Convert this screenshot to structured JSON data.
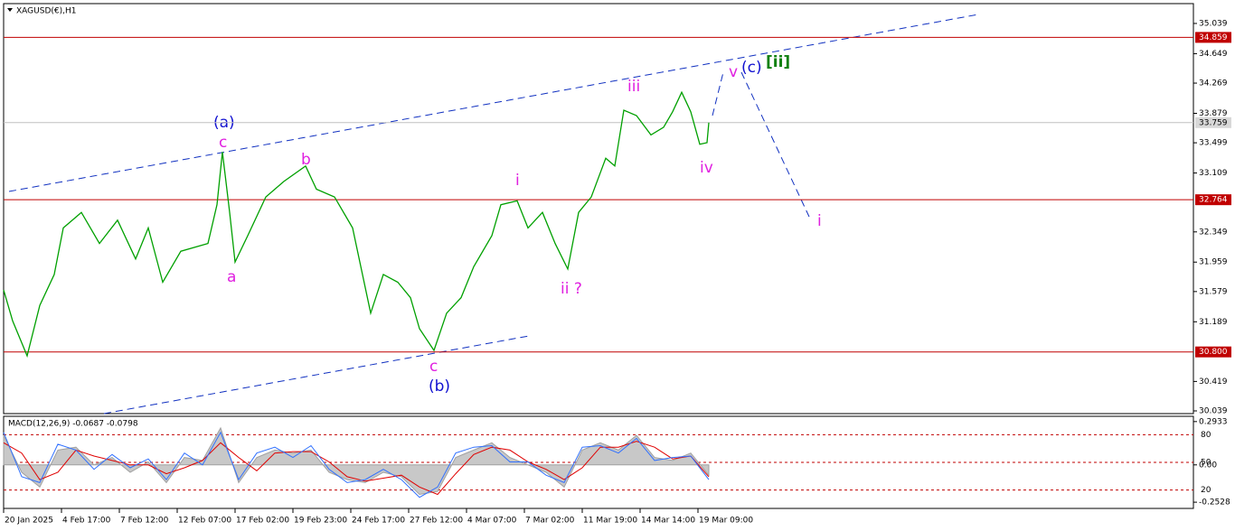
{
  "chart_data": [
    {
      "type": "line",
      "title": "XAGUSD(€),H1",
      "x": [
        0,
        5,
        13,
        20,
        28,
        33,
        43,
        53,
        63,
        73,
        80,
        88,
        98,
        113,
        118,
        121,
        125,
        128,
        135,
        145,
        155,
        167,
        173,
        183,
        193,
        203,
        210,
        218,
        225,
        230,
        238,
        245,
        253,
        260,
        270,
        275,
        284,
        290,
        298,
        305,
        312,
        318,
        325,
        333,
        338,
        343,
        350,
        358,
        365,
        370,
        375,
        380,
        385,
        389,
        390
      ],
      "series": [
        {
          "color": "#00a000",
          "values": [
            31.6,
            31.2,
            30.75,
            31.4,
            31.8,
            32.4,
            32.6,
            32.2,
            32.5,
            32.0,
            32.4,
            31.7,
            32.1,
            32.2,
            32.7,
            33.38,
            32.6,
            31.96,
            32.3,
            32.8,
            33.0,
            33.2,
            32.9,
            32.8,
            32.4,
            31.3,
            31.8,
            31.7,
            31.5,
            31.1,
            30.82,
            31.3,
            31.5,
            31.9,
            32.3,
            32.7,
            32.75,
            32.4,
            32.6,
            32.2,
            31.87,
            32.6,
            32.8,
            33.3,
            33.2,
            33.92,
            33.85,
            33.6,
            33.7,
            33.9,
            34.15,
            33.9,
            33.48,
            33.5,
            33.759
          ]
        }
      ],
      "xlim": [
        0,
        658
      ],
      "xticks": [
        {
          "value": 0,
          "label": "20 Jan 2025"
        },
        {
          "value": 32,
          "label": "4 Feb 17:00"
        },
        {
          "value": 64,
          "label": "7 Feb 12:00"
        },
        {
          "value": 96,
          "label": "12 Feb 07:00"
        },
        {
          "value": 128,
          "label": "17 Feb 02:00"
        },
        {
          "value": 160,
          "label": "19 Feb 23:00"
        },
        {
          "value": 192,
          "label": "24 Feb 17:00"
        },
        {
          "value": 224,
          "label": "27 Feb 12:00"
        },
        {
          "value": 256,
          "label": "4 Mar 07:00"
        },
        {
          "value": 288,
          "label": "7 Mar 02:00"
        },
        {
          "value": 320,
          "label": "11 Mar 19:00"
        },
        {
          "value": 352,
          "label": "14 Mar 14:00"
        },
        {
          "value": 384,
          "label": "19 Mar 09:00"
        }
      ],
      "ylim": [
        30.004,
        35.295
      ],
      "yticks": [
        35.039,
        34.649,
        34.269,
        33.879,
        33.499,
        33.109,
        32.349,
        31.959,
        31.579,
        31.189,
        30.419,
        30.039
      ],
      "levels": [
        34.859,
        32.764,
        {
          "value": 30.8,
          "label": "30.800"
        }
      ],
      "level_color": "#c00000",
      "current_price": 33.759,
      "annotations": [
        "(a)",
        "c",
        "b",
        "a",
        "c",
        "(b)",
        "i",
        "ii ?",
        "iii",
        "iv",
        "v",
        "(c)",
        "[ii]",
        "i"
      ]
    },
    {
      "type": "macd",
      "title": "MACD(12,26,9) -0.0687 -0.0798",
      "x": [
        0,
        10,
        20,
        30,
        40,
        50,
        60,
        70,
        80,
        90,
        100,
        110,
        120,
        130,
        140,
        150,
        160,
        170,
        180,
        190,
        200,
        210,
        220,
        230,
        240,
        250,
        260,
        270,
        280,
        290,
        300,
        310,
        320,
        330,
        340,
        350,
        360,
        370,
        380,
        390
      ],
      "series": [
        {
          "color": "#a0a0a0",
          "values": [
            0.2,
            -0.05,
            -0.15,
            0.1,
            0.12,
            0.0,
            0.05,
            -0.05,
            0.02,
            -0.12,
            0.05,
            0.03,
            0.25,
            -0.12,
            0.05,
            0.1,
            0.08,
            0.1,
            -0.05,
            -0.1,
            -0.12,
            -0.05,
            -0.08,
            -0.2,
            -0.18,
            0.05,
            0.1,
            0.15,
            0.05,
            0.0,
            -0.05,
            -0.15,
            0.1,
            0.15,
            0.1,
            0.2,
            0.05,
            0.03,
            0.08,
            -0.07
          ]
        },
        {
          "color": "#e00000",
          "values": [
            0.15,
            0.08,
            -0.1,
            -0.05,
            0.1,
            0.06,
            0.03,
            0.0,
            0.0,
            -0.06,
            -0.02,
            0.03,
            0.15,
            0.05,
            -0.04,
            0.08,
            0.09,
            0.09,
            0.02,
            -0.08,
            -0.11,
            -0.09,
            -0.07,
            -0.15,
            -0.2,
            -0.06,
            0.07,
            0.12,
            0.1,
            0.02,
            -0.03,
            -0.1,
            -0.02,
            0.12,
            0.12,
            0.16,
            0.12,
            0.04,
            0.06,
            -0.08
          ]
        },
        {
          "color": "#3070ff",
          "values": [
            0.22,
            -0.08,
            -0.12,
            0.14,
            0.1,
            -0.03,
            0.07,
            -0.02,
            0.04,
            -0.1,
            0.08,
            0.0,
            0.22,
            -0.1,
            0.08,
            0.12,
            0.05,
            0.13,
            -0.03,
            -0.12,
            -0.1,
            -0.03,
            -0.1,
            -0.22,
            -0.15,
            0.08,
            0.12,
            0.13,
            0.02,
            0.02,
            -0.07,
            -0.12,
            0.12,
            0.13,
            0.08,
            0.18,
            0.03,
            0.05,
            0.06,
            -0.1
          ]
        }
      ],
      "ylim": [
        -0.295,
        0.329
      ],
      "yticks": [
        0.2933,
        {
          "value": 0,
          "label": "0.00"
        },
        -0.2528
      ],
      "overlay_ylim": [
        0,
        100
      ],
      "overlay_levels": [
        80,
        50,
        20
      ]
    }
  ]
}
